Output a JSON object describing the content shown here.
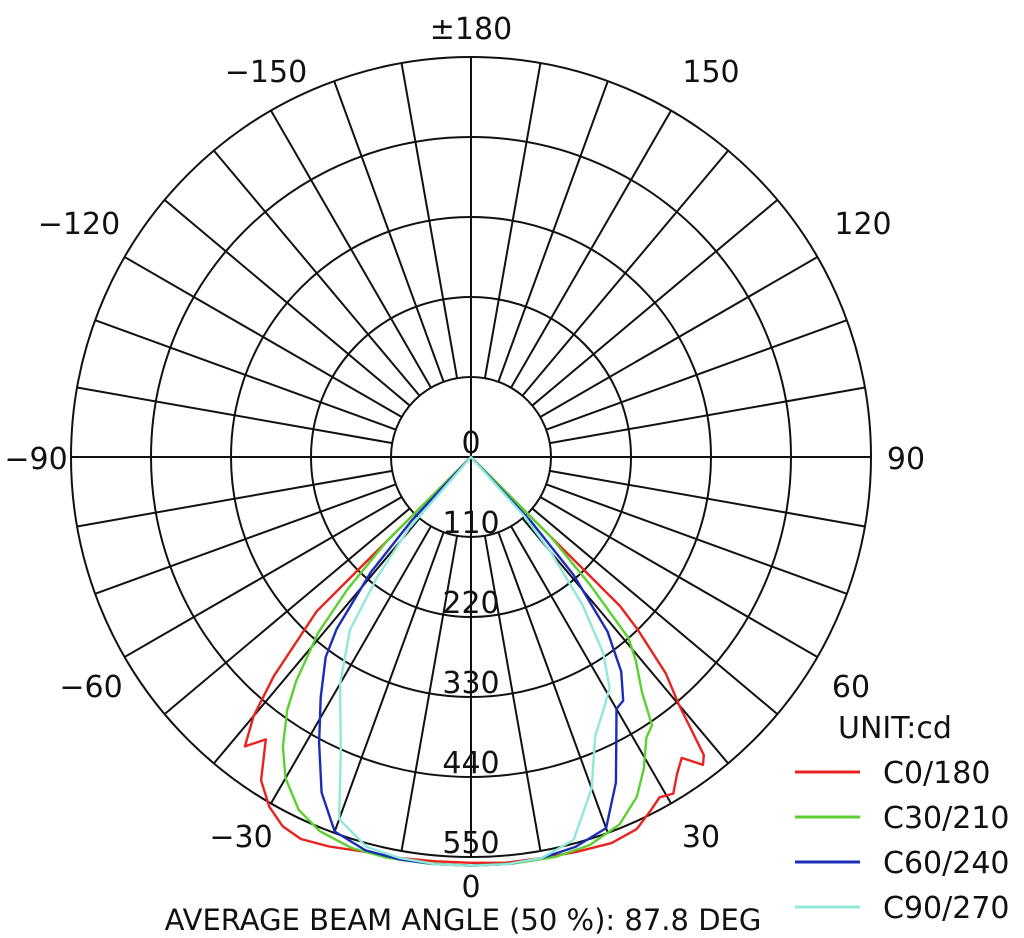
{
  "chart_data": {
    "type": "polar",
    "unit_label": "UNIT:cd",
    "caption": "AVERAGE BEAM ANGLE (50 %): 87.8 DEG",
    "radial_max": 550,
    "radial_ticks": [
      "0",
      "110",
      "220",
      "330",
      "440",
      "550"
    ],
    "radial_tick_values": [
      0,
      110,
      220,
      330,
      440,
      550
    ],
    "angle_labels": [
      {
        "text": "±180",
        "angle": 180
      },
      {
        "text": "−150",
        "angle": -150
      },
      {
        "text": "150",
        "angle": 150
      },
      {
        "text": "−120",
        "angle": -120
      },
      {
        "text": "120",
        "angle": 120
      },
      {
        "text": "−90",
        "angle": -90
      },
      {
        "text": "90",
        "angle": 90
      },
      {
        "text": "−60",
        "angle": -60
      },
      {
        "text": "60",
        "angle": 60
      },
      {
        "text": "−30",
        "angle": -30
      },
      {
        "text": "30",
        "angle": 30
      },
      {
        "text": "0",
        "angle": 0
      }
    ],
    "grid": true,
    "legend_position": "bottom-right",
    "series": [
      {
        "name": "C0/180",
        "color": "#e8231f",
        "points": [
          [
            -45,
            300
          ],
          [
            -42,
            405
          ],
          [
            -40,
            465
          ],
          [
            -38,
            505
          ],
          [
            -36,
            480
          ],
          [
            -33,
            530
          ],
          [
            -30,
            555
          ],
          [
            -27,
            570
          ],
          [
            -24,
            575
          ],
          [
            -20,
            570
          ],
          [
            -15,
            562
          ],
          [
            -10,
            560
          ],
          [
            -5,
            558
          ],
          [
            0,
            558
          ],
          [
            5,
            560
          ],
          [
            10,
            560
          ],
          [
            15,
            562
          ],
          [
            20,
            565
          ],
          [
            24,
            560
          ],
          [
            27,
            545
          ],
          [
            29,
            535
          ],
          [
            31,
            540
          ],
          [
            33,
            520
          ],
          [
            35,
            505
          ],
          [
            37,
            530
          ],
          [
            38,
            520
          ],
          [
            40,
            445
          ],
          [
            42,
            400
          ],
          [
            44,
            330
          ],
          [
            45,
            290
          ]
        ]
      },
      {
        "name": "C30/210",
        "color": "#5ad12f",
        "points": [
          [
            -45,
            165
          ],
          [
            -43,
            250
          ],
          [
            -41,
            320
          ],
          [
            -38,
            390
          ],
          [
            -36,
            430
          ],
          [
            -33,
            475
          ],
          [
            -30,
            510
          ],
          [
            -26,
            540
          ],
          [
            -22,
            555
          ],
          [
            -17,
            562
          ],
          [
            -12,
            563
          ],
          [
            -6,
            562
          ],
          [
            0,
            562
          ],
          [
            6,
            562
          ],
          [
            12,
            562
          ],
          [
            17,
            558
          ],
          [
            22,
            545
          ],
          [
            26,
            520
          ],
          [
            29,
            490
          ],
          [
            32,
            455
          ],
          [
            34,
            445
          ],
          [
            36,
            400
          ],
          [
            39,
            360
          ],
          [
            41,
            330
          ],
          [
            43,
            240
          ],
          [
            45,
            155
          ]
        ]
      },
      {
        "name": "C60/240",
        "color": "#1a2db8",
        "points": [
          [
            -43,
            120
          ],
          [
            -41,
            210
          ],
          [
            -38,
            300
          ],
          [
            -36,
            340
          ],
          [
            -32,
            390
          ],
          [
            -28,
            445
          ],
          [
            -24,
            505
          ],
          [
            -20,
            548
          ],
          [
            -15,
            560
          ],
          [
            -10,
            562
          ],
          [
            -5,
            562
          ],
          [
            0,
            562
          ],
          [
            5,
            562
          ],
          [
            10,
            560
          ],
          [
            15,
            555
          ],
          [
            20,
            543
          ],
          [
            24,
            490
          ],
          [
            27,
            440
          ],
          [
            30,
            400
          ],
          [
            32,
            395
          ],
          [
            35,
            360
          ],
          [
            38,
            305
          ],
          [
            41,
            215
          ],
          [
            43,
            120
          ]
        ]
      },
      {
        "name": "C90/270",
        "color": "#8fe8d8",
        "points": [
          [
            -41,
            130
          ],
          [
            -38,
            210
          ],
          [
            -35,
            290
          ],
          [
            -30,
            360
          ],
          [
            -24,
            440
          ],
          [
            -20,
            530
          ],
          [
            -15,
            555
          ],
          [
            -10,
            560
          ],
          [
            -5,
            562
          ],
          [
            0,
            562
          ],
          [
            5,
            562
          ],
          [
            10,
            560
          ],
          [
            15,
            545
          ],
          [
            20,
            485
          ],
          [
            24,
            420
          ],
          [
            28,
            390
          ],
          [
            31,
            370
          ],
          [
            34,
            325
          ],
          [
            37,
            255
          ],
          [
            40,
            170
          ],
          [
            42,
            110
          ]
        ]
      }
    ]
  }
}
